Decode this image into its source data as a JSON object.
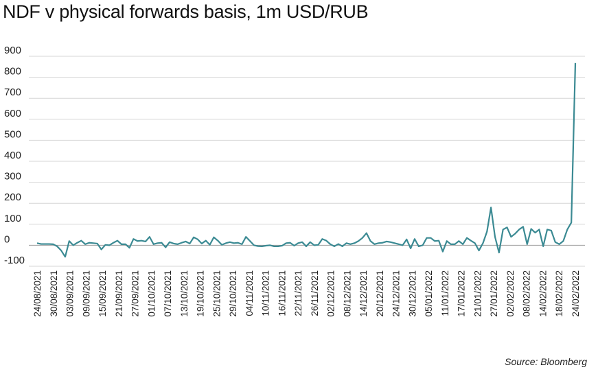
{
  "chart_data": {
    "type": "line",
    "title": "NDF v physical forwards basis, 1m USD/RUB",
    "source": "Source: Bloomberg",
    "xlabel": "",
    "ylabel": "",
    "ylim": [
      -100,
      900
    ],
    "yticks": [
      "900",
      "800",
      "700",
      "600",
      "500",
      "400",
      "300",
      "200",
      "100",
      "0",
      "-100"
    ],
    "ytick_values": [
      900,
      800,
      700,
      600,
      500,
      400,
      300,
      200,
      100,
      0,
      -100
    ],
    "xtick_labels": [
      "24/08/2021",
      "30/08/2021",
      "03/09/2021",
      "09/09/2021",
      "15/09/2021",
      "21/09/2021",
      "27/09/2021",
      "01/10/2021",
      "07/10/2021",
      "13/10/2021",
      "19/10/2021",
      "25/10/2021",
      "29/10/2021",
      "04/11/2021",
      "10/11/2021",
      "16/11/2021",
      "22/11/2021",
      "26/11/2021",
      "02/12/2021",
      "08/12/2021",
      "14/12/2021",
      "20/12/2021",
      "24/12/2021",
      "30/12/2021",
      "05/01/2022",
      "11/01/2022",
      "17/01/2022",
      "21/01/2022",
      "27/01/2022",
      "02/02/2022",
      "08/02/2022",
      "14/02/2022",
      "18/02/2022",
      "24/02/2022"
    ],
    "grid": true,
    "line_color": "#3b8a93",
    "series": [
      {
        "values": [
          10,
          6,
          6,
          6,
          5,
          -5,
          -25,
          -55,
          20,
          0,
          12,
          22,
          5,
          12,
          10,
          8,
          -20,
          2,
          0,
          12,
          22,
          5,
          5,
          -12,
          30,
          20,
          22,
          18,
          40,
          5,
          10,
          12,
          -10,
          15,
          8,
          5,
          12,
          18,
          8,
          38,
          28,
          8,
          22,
          2,
          38,
          22,
          2,
          10,
          15,
          10,
          12,
          5,
          40,
          20,
          0,
          -4,
          -5,
          -2,
          0,
          -5,
          -5,
          -2,
          10,
          12,
          -2,
          10,
          15,
          -5,
          15,
          0,
          2,
          30,
          22,
          5,
          -5,
          6,
          -5,
          10,
          5,
          10,
          20,
          35,
          58,
          20,
          5,
          10,
          12,
          18,
          15,
          10,
          5,
          0,
          28,
          -15,
          30,
          -5,
          0,
          35,
          35,
          20,
          22,
          -30,
          20,
          5,
          5,
          20,
          5,
          35,
          22,
          10,
          -25,
          10,
          65,
          180,
          40,
          -35,
          75,
          85,
          40,
          55,
          75,
          88,
          5,
          78,
          60,
          75,
          -5,
          75,
          70,
          15,
          5,
          20,
          75,
          108,
          868
        ]
      }
    ]
  }
}
